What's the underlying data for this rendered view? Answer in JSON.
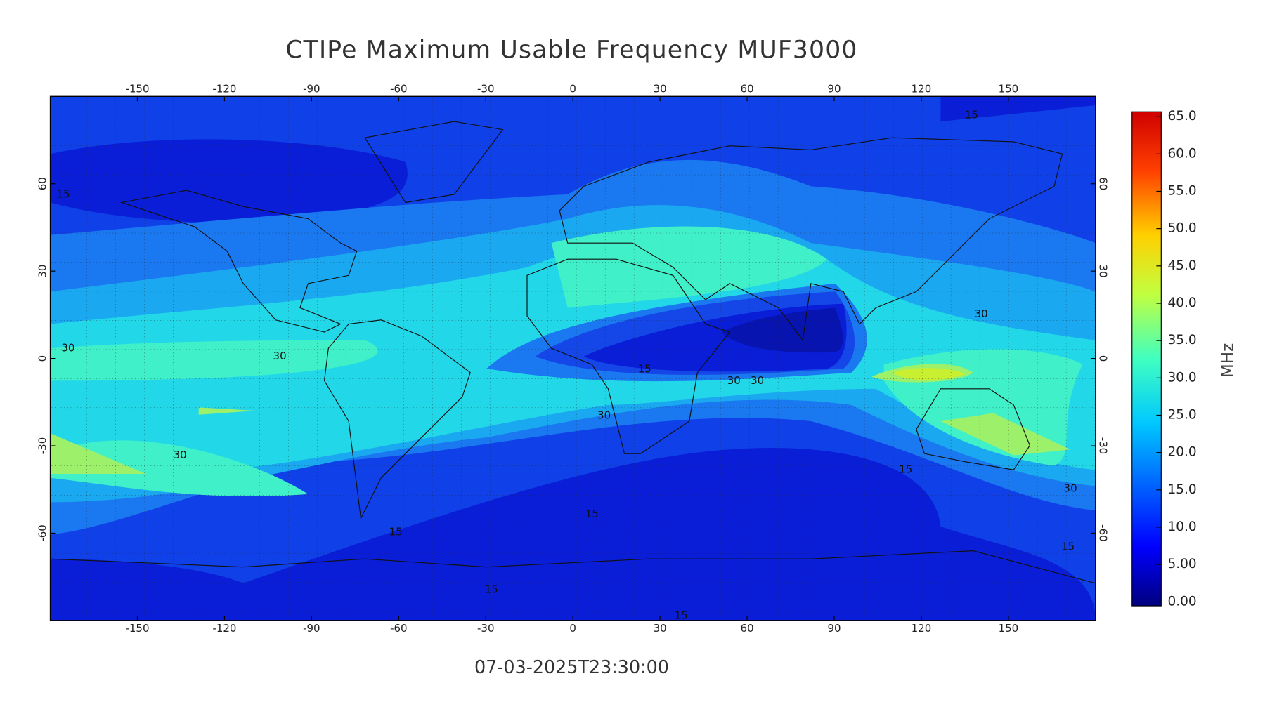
{
  "map": {
    "title": "CTIPe Maximum Usable Frequency MUF3000",
    "timestamp": "07-03-2025T23:30:00",
    "xlim": [
      -180,
      180
    ],
    "ylim": [
      -90,
      90
    ],
    "xticks": [
      -150,
      -120,
      -90,
      -60,
      -30,
      0,
      30,
      60,
      90,
      120,
      150
    ],
    "yticks": [
      -60,
      -30,
      0,
      30,
      60
    ],
    "contour_labels": [
      "15",
      "15",
      "30",
      "30",
      "15",
      "30",
      "30",
      "30",
      "30",
      "30",
      "15",
      "30",
      "15",
      "15",
      "15",
      "15",
      "15"
    ]
  },
  "colorbar": {
    "label": "MHz",
    "lim": [
      0,
      65
    ],
    "ticks": [
      {
        "value": 0,
        "label": "0.00"
      },
      {
        "value": 5,
        "label": "5.00"
      },
      {
        "value": 10,
        "label": "10.0"
      },
      {
        "value": 15,
        "label": "15.0"
      },
      {
        "value": 20,
        "label": "20.0"
      },
      {
        "value": 25,
        "label": "25.0"
      },
      {
        "value": 30,
        "label": "30.0"
      },
      {
        "value": 35,
        "label": "35.0"
      },
      {
        "value": 40,
        "label": "40.0"
      },
      {
        "value": 45,
        "label": "45.0"
      },
      {
        "value": 50,
        "label": "50.0"
      },
      {
        "value": 55,
        "label": "55.0"
      },
      {
        "value": 60,
        "label": "60.0"
      },
      {
        "value": 65,
        "label": "65.0"
      }
    ]
  }
}
